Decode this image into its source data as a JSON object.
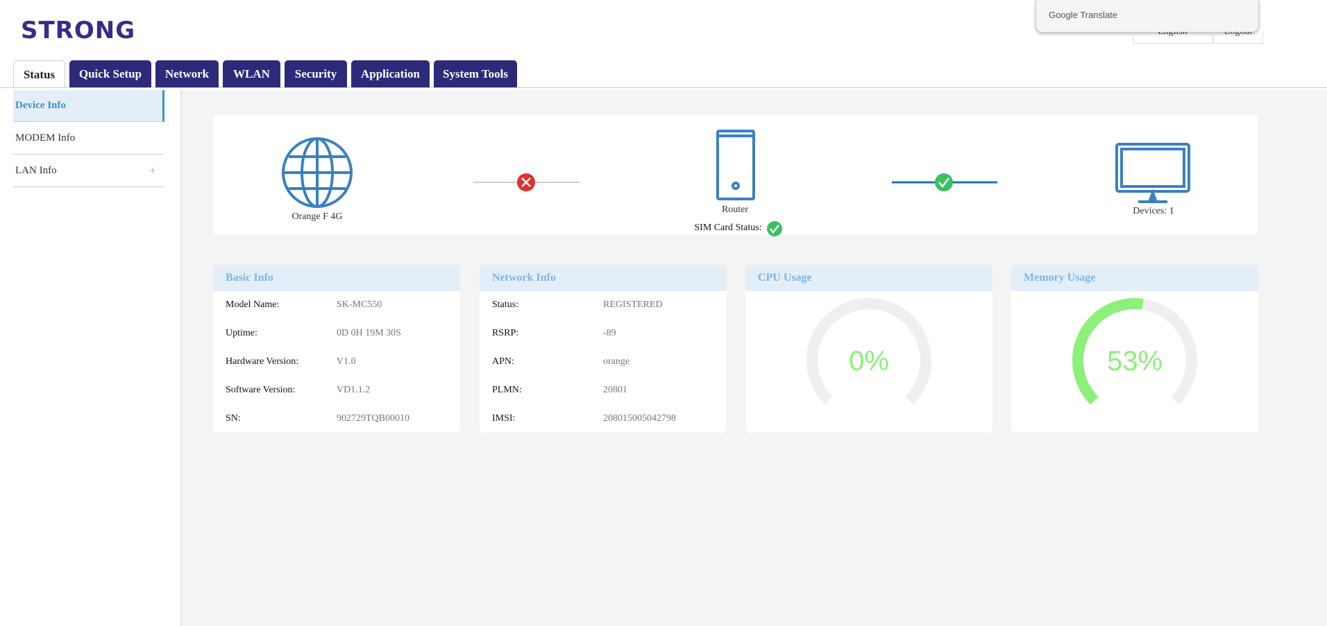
{
  "header": {
    "logo": "STRONG",
    "language": "English",
    "logout": "Logout",
    "translate_brand": "Google",
    "translate_label": "Translate"
  },
  "tabs": [
    "Status",
    "Quick Setup",
    "Network",
    "WLAN",
    "Security",
    "Application",
    "System Tools"
  ],
  "sidebar": [
    "Device Info",
    "MODEM Info",
    "LAN Info"
  ],
  "topology": {
    "internet": "Orange F 4G",
    "router": "Router",
    "sim_status": "SIM Card Status:",
    "devices": "Devices: 1"
  },
  "basic_info": {
    "title": "Basic Info",
    "rows": [
      [
        "Model Name:",
        "SK-MC550"
      ],
      [
        "Uptime:",
        "0D 0H 19M 30S"
      ],
      [
        "Hardware Version:",
        "V1.0"
      ],
      [
        "Software Version:",
        "VD1.1.2"
      ],
      [
        "SN:",
        "902729TQB00010"
      ]
    ]
  },
  "network_info": {
    "title": "Network Info",
    "rows": [
      [
        "Status:",
        "REGISTERED"
      ],
      [
        "RSRP:",
        "-89"
      ],
      [
        "APN:",
        "orange"
      ],
      [
        "PLMN:",
        "20801"
      ],
      [
        "IMSI:",
        "208015005042798"
      ]
    ]
  },
  "cpu_usage": {
    "title": "CPU Usage",
    "value": 0,
    "value_label": "0%"
  },
  "memory_usage": {
    "title": "Memory Usage",
    "value": 53,
    "value_label": "53%"
  }
}
